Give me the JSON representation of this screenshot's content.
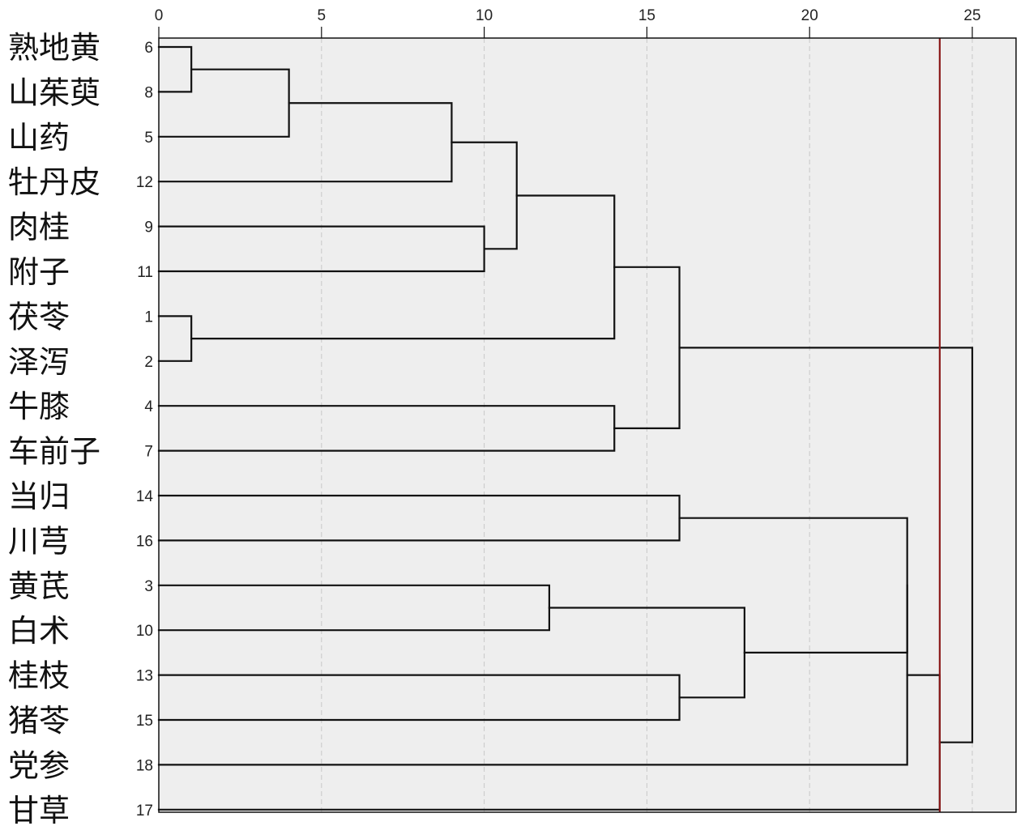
{
  "chart_data": {
    "type": "dendrogram",
    "x_axis": {
      "min": 0,
      "max": 25,
      "ticks": [
        "0",
        "5",
        "10",
        "15",
        "20",
        "25"
      ]
    },
    "leaves": [
      {
        "name": "熟地黄",
        "id": "6"
      },
      {
        "name": "山茱萸",
        "id": "8"
      },
      {
        "name": "山药",
        "id": "5"
      },
      {
        "name": "牡丹皮",
        "id": "12"
      },
      {
        "name": "肉桂",
        "id": "9"
      },
      {
        "name": "附子",
        "id": "11"
      },
      {
        "name": "茯苓",
        "id": "1"
      },
      {
        "name": "泽泻",
        "id": "2"
      },
      {
        "name": "牛膝",
        "id": "4"
      },
      {
        "name": "车前子",
        "id": "7"
      },
      {
        "name": "当归",
        "id": "14"
      },
      {
        "name": "川芎",
        "id": "16"
      },
      {
        "name": "黄芪",
        "id": "3"
      },
      {
        "name": "白术",
        "id": "10"
      },
      {
        "name": "桂枝",
        "id": "13"
      },
      {
        "name": "猪苓",
        "id": "15"
      },
      {
        "name": "党参",
        "id": "18"
      },
      {
        "name": "甘草",
        "id": "17"
      }
    ],
    "merges": [
      {
        "children": [
          0,
          1
        ],
        "distance": 1
      },
      {
        "children": [
          6,
          7
        ],
        "distance": 1
      },
      {
        "children": [
          18,
          2
        ],
        "distance": 4
      },
      {
        "children": [
          20,
          3
        ],
        "distance": 9
      },
      {
        "children": [
          4,
          5
        ],
        "distance": 10
      },
      {
        "children": [
          21,
          22
        ],
        "distance": 11
      },
      {
        "children": [
          12,
          13
        ],
        "distance": 12
      },
      {
        "children": [
          23,
          19
        ],
        "distance": 14
      },
      {
        "children": [
          8,
          9
        ],
        "distance": 14
      },
      {
        "children": [
          25,
          26
        ],
        "distance": 16
      },
      {
        "children": [
          10,
          11
        ],
        "distance": 16
      },
      {
        "children": [
          14,
          15
        ],
        "distance": 16
      },
      {
        "children": [
          24,
          29
        ],
        "distance": 18
      },
      {
        "children": [
          28,
          30
        ],
        "distance": 23
      },
      {
        "children": [
          31,
          16
        ],
        "distance": 23
      },
      {
        "children": [
          32,
          17
        ],
        "distance": 24
      },
      {
        "children": [
          27,
          33
        ],
        "distance": 25
      }
    ],
    "cutoff": 24,
    "colors": {
      "line": "#111111",
      "grid": "#c8c8c8",
      "plot_bg": "#eeeeee",
      "cutoff": "#8b1a1a"
    }
  }
}
